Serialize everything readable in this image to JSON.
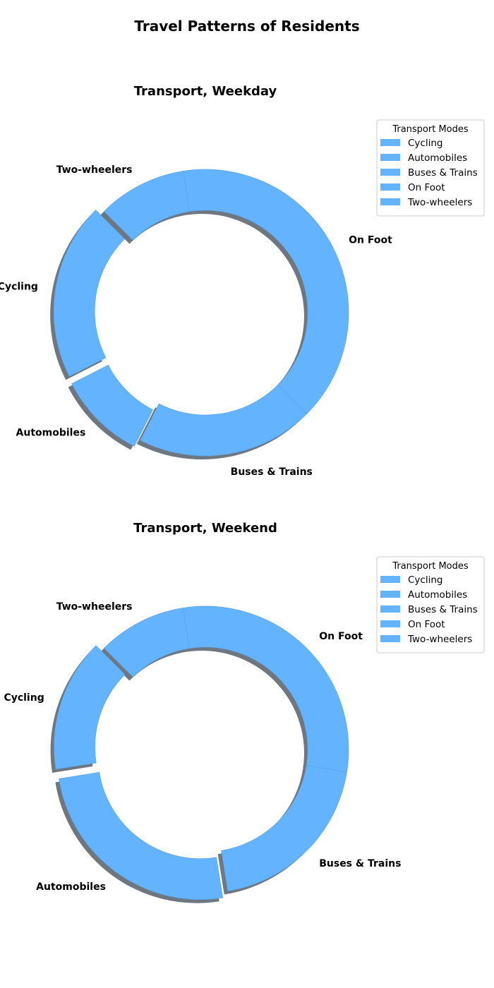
{
  "title": "Travel Patterns of Residents",
  "colors": {
    "slice": "#63b3ff",
    "shadow": "#6e7780",
    "edge": "#5a9fe6",
    "legend_border": "#cccccc"
  },
  "chart_data": [
    {
      "type": "pie",
      "variant": "donut",
      "title": "Transport, Weekday",
      "categories": [
        "Cycling",
        "Automobiles",
        "Buses & Trains",
        "On Foot",
        "Two-wheelers"
      ],
      "values": [
        20,
        10,
        20,
        40,
        10
      ],
      "exploded": [
        "Cycling",
        "Automobiles"
      ],
      "shadow": true,
      "legend": {
        "title": "Transport Modes",
        "position": "top-right",
        "items": [
          "Cycling",
          "Automobiles",
          "Buses & Trains",
          "On Foot",
          "Two-wheelers"
        ]
      }
    },
    {
      "type": "pie",
      "variant": "donut",
      "title": "Transport, Weekend",
      "categories": [
        "Cycling",
        "Automobiles",
        "Buses & Trains",
        "On Foot",
        "Two-wheelers"
      ],
      "values": [
        15,
        25,
        20,
        30,
        10
      ],
      "exploded": [
        "Cycling",
        "Automobiles"
      ],
      "shadow": true,
      "legend": {
        "title": "Transport Modes",
        "position": "top-right",
        "items": [
          "Cycling",
          "Automobiles",
          "Buses & Trains",
          "On Foot",
          "Two-wheelers"
        ]
      }
    }
  ]
}
